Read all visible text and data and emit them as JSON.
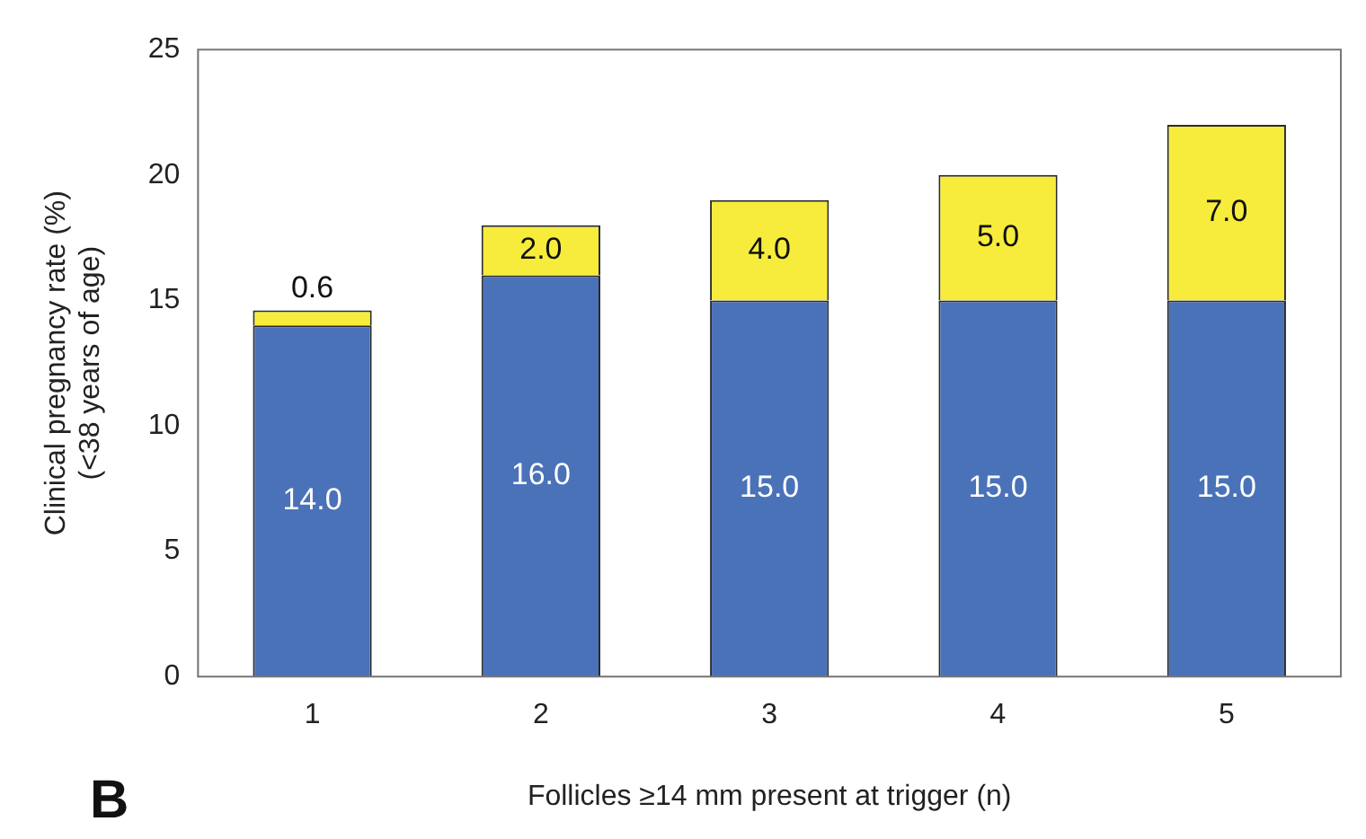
{
  "chart_data": {
    "type": "bar",
    "stacked": true,
    "xlabel": "Follicles ≥14 mm present at trigger (n)",
    "ylabel": "Clinical pregnancy rate (%)\n(<38 years of age)",
    "categories": [
      "1",
      "2",
      "3",
      "4",
      "5"
    ],
    "series": [
      {
        "color": "#4a72b8",
        "values": [
          14,
          16,
          15,
          15,
          15
        ],
        "value_labels": [
          "14.0",
          "16.0",
          "15.0",
          "15.0",
          "15.0"
        ]
      },
      {
        "color": "#f7ec3b",
        "values": [
          0.6,
          2,
          4,
          5,
          7
        ],
        "value_labels": [
          "0.6",
          "2.0",
          "4.0",
          "5.0",
          "7.0"
        ]
      }
    ],
    "ylim": [
      0,
      25
    ],
    "yticks": [
      0,
      5,
      10,
      15,
      20,
      25
    ],
    "grid": false,
    "legend": false,
    "annotations": [
      "B"
    ]
  }
}
